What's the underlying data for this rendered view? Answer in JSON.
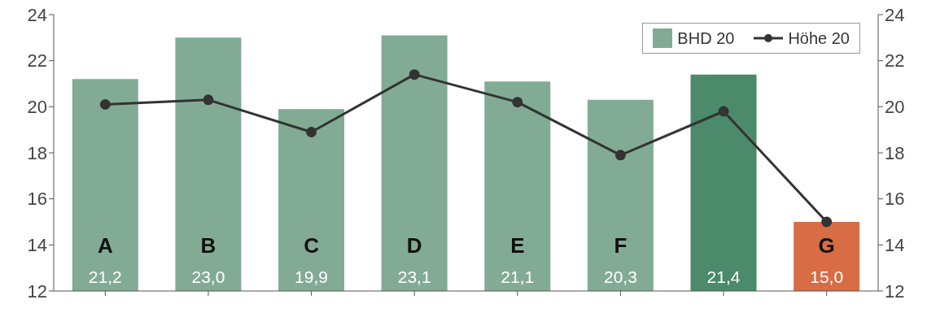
{
  "chart_data": {
    "type": "bar",
    "categories": [
      "A",
      "B",
      "C",
      "D",
      "E",
      "F",
      null,
      "G"
    ],
    "series": [
      {
        "name": "BHD 20",
        "color": "#82ab96",
        "colors": [
          "#82ab96",
          "#82ab96",
          "#82ab96",
          "#82ab96",
          "#82ab96",
          "#82ab96",
          "#4b8a6a",
          "#d86c45"
        ],
        "values": [
          21.2,
          23.0,
          19.9,
          23.1,
          21.1,
          20.3,
          21.4,
          15.0
        ],
        "value_labels": [
          "21,2",
          "23,0",
          "19,9",
          "23,1",
          "21,1",
          "20,3",
          "21,4",
          "15,0"
        ]
      },
      {
        "type": "line",
        "name": "Höhe 20",
        "color": "#333333",
        "values": [
          20.1,
          20.3,
          18.9,
          21.4,
          20.2,
          17.9,
          19.8,
          15.0
        ],
        "marker": "circle"
      }
    ],
    "ylim": [
      12,
      24
    ],
    "yticks": [
      12,
      14,
      16,
      18,
      20,
      22,
      24
    ],
    "y2lim": [
      12,
      24
    ],
    "y2ticks": [
      12,
      14,
      16,
      18,
      20,
      22,
      24
    ],
    "grid": false,
    "legend": "top right"
  }
}
